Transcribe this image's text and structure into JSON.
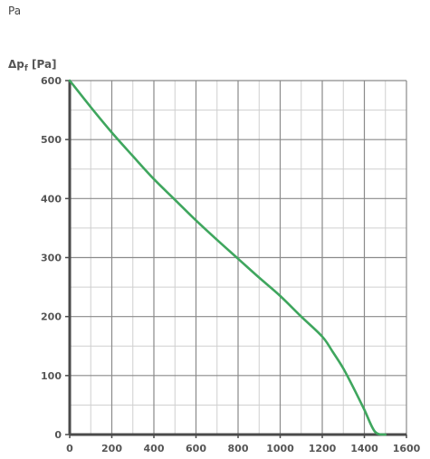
{
  "header": {
    "unit_label": "Pa"
  },
  "chart_data": {
    "type": "line",
    "title": "",
    "xlabel": "",
    "ylabel": "Δpf [Pa]",
    "ylabel_parts": {
      "base": "Δp",
      "sub": "f",
      "suffix": " [Pa]"
    },
    "xlim": [
      0,
      1600
    ],
    "ylim": [
      0,
      600
    ],
    "x_ticks": [
      0,
      200,
      400,
      600,
      800,
      1000,
      1200,
      1400,
      1600
    ],
    "y_ticks": [
      0,
      100,
      200,
      300,
      400,
      500,
      600
    ],
    "x_minor_step": 100,
    "y_minor_step": 50,
    "grid": true,
    "series": [
      {
        "color": "#3fa65e",
        "x": [
          0,
          100,
          200,
          300,
          400,
          500,
          600,
          700,
          800,
          900,
          1000,
          1100,
          1200,
          1250,
          1300,
          1350,
          1400,
          1450,
          1500
        ],
        "y": [
          600,
          555,
          512,
          472,
          433,
          398,
          363,
          330,
          298,
          266,
          235,
          200,
          166,
          140,
          112,
          78,
          42,
          5,
          -2
        ]
      }
    ],
    "colors": {
      "axis": "#4a4a4a",
      "major_grid": "#8a8a8a",
      "minor_grid": "#cfcfcf",
      "line": "#3fa65e"
    }
  }
}
